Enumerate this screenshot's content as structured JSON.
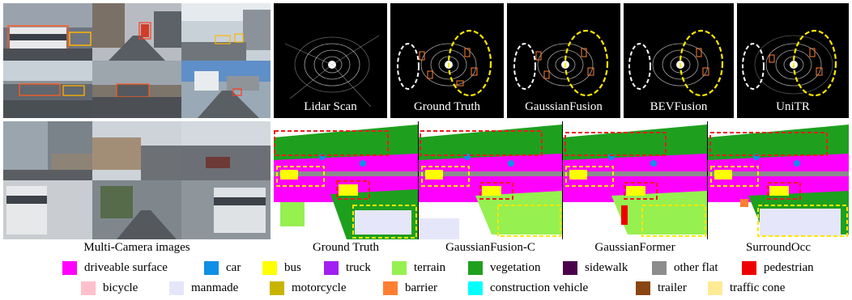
{
  "top_row": {
    "lidar_panels": [
      {
        "label": "Lidar Scan"
      },
      {
        "label": "Ground Truth"
      },
      {
        "label": "GaussianFusion"
      },
      {
        "label": "BEVFusion"
      },
      {
        "label": "UniTR"
      }
    ]
  },
  "bottom_row": {
    "camera_caption": "Multi-Camera images",
    "occupancy_panels": [
      {
        "label": "Ground Truth"
      },
      {
        "label": "GaussianFusion-C"
      },
      {
        "label": "GaussianFormer"
      },
      {
        "label": "SurroundOcc"
      }
    ]
  },
  "legend": {
    "row1": [
      {
        "label": "driveable surface",
        "color": "#ff00ff"
      },
      {
        "label": "car",
        "color": "#0f8fe6"
      },
      {
        "label": "bus",
        "color": "#ffff00"
      },
      {
        "label": "truck",
        "color": "#a020f0"
      },
      {
        "label": "terrain",
        "color": "#96f050"
      },
      {
        "label": "vegetation",
        "color": "#1ea01e"
      },
      {
        "label": "sidewalk",
        "color": "#4b004b"
      },
      {
        "label": "other flat",
        "color": "#8c8c8c"
      },
      {
        "label": "pedestrian",
        "color": "#ee0000"
      }
    ],
    "row2": [
      {
        "label": "bicycle",
        "color": "#ffc0cb"
      },
      {
        "label": "manmade",
        "color": "#e6e6fa"
      },
      {
        "label": "motorcycle",
        "color": "#c8b400"
      },
      {
        "label": "barrier",
        "color": "#ff7f32"
      },
      {
        "label": "construction vehicle",
        "color": "#00ffff"
      },
      {
        "label": "trailer",
        "color": "#8b4513"
      },
      {
        "label": "traffic cone",
        "color": "#ffeb96"
      }
    ]
  }
}
